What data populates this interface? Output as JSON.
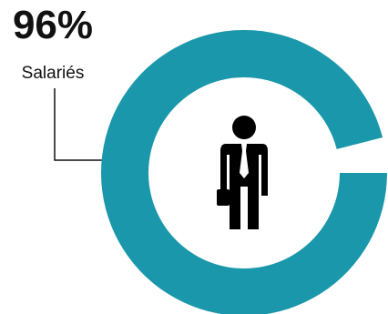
{
  "chart_data": {
    "type": "donut",
    "categories": [
      "Salariés"
    ],
    "values": [
      96
    ],
    "value_labels": [
      "96%"
    ],
    "color": "#1a97aa"
  }
}
